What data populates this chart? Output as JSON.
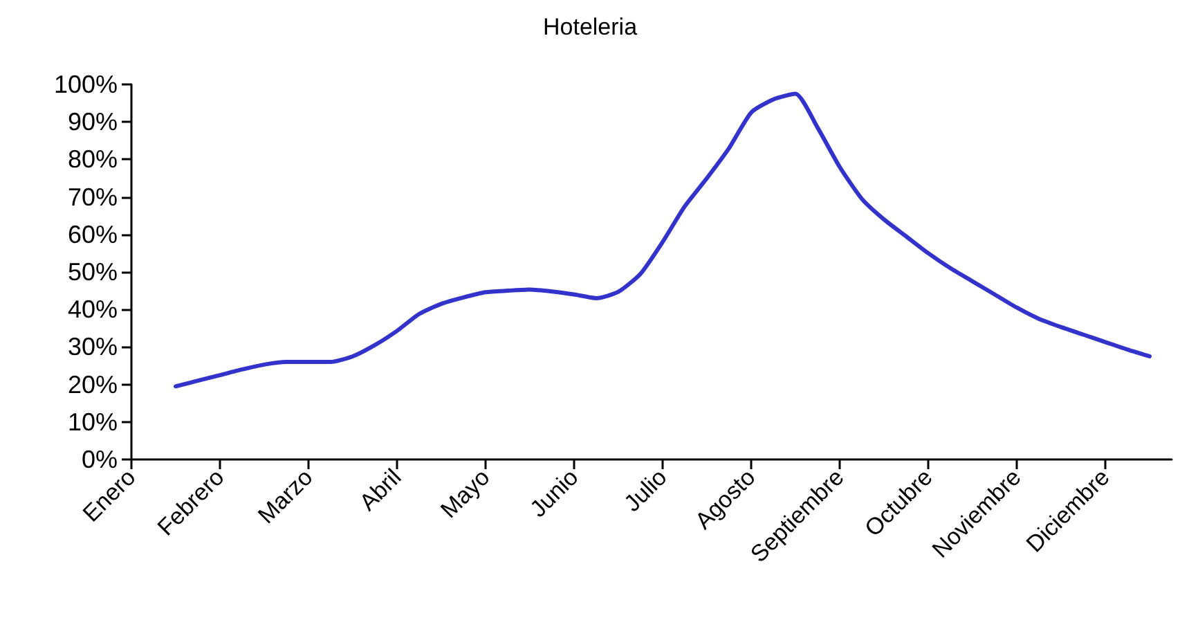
{
  "chart_data": {
    "type": "line",
    "title": "Hoteleria",
    "categories": [
      "Enero",
      null,
      null,
      null,
      "Febrero",
      null,
      null,
      null,
      "Marzo",
      null,
      null,
      null,
      "Abril",
      null,
      null,
      null,
      "Mayo",
      null,
      null,
      null,
      "Junio",
      null,
      null,
      null,
      "Julio",
      null,
      null,
      null,
      "Agosto",
      null,
      null,
      null,
      "Septiembre",
      null,
      null,
      null,
      "Octubre",
      null,
      null,
      null,
      "Noviembre",
      null,
      null,
      null,
      "Diciembre",
      null,
      null,
      null
    ],
    "values": [
      null,
      null,
      19.5,
      21,
      22.5,
      24,
      25.3,
      26,
      26,
      26,
      27.5,
      30.5,
      34.3,
      38.8,
      41.5,
      43.2,
      44.6,
      45,
      45.3,
      44.8,
      44,
      43,
      44.7,
      49.5,
      58,
      67.5,
      75,
      83,
      92.5,
      96,
      97.5,
      88.5,
      78,
      69.5,
      64,
      59.5,
      55,
      51,
      47.5,
      44,
      40.5,
      37.5,
      35.3,
      33.3,
      31.3,
      29.3,
      27.5,
      null
    ],
    "color": "#3333cc",
    "marker": "none",
    "line_style": "solid",
    "grid": false,
    "ylim": [
      0,
      100
    ],
    "yticks": [
      {
        "value": 0,
        "label": "0%"
      },
      {
        "value": 10,
        "label": "10%"
      },
      {
        "value": 20,
        "label": "20%"
      },
      {
        "value": 30,
        "label": "30%"
      },
      {
        "value": 40,
        "label": "40%"
      },
      {
        "value": 50,
        "label": "50%"
      },
      {
        "value": 60,
        "label": "60%"
      },
      {
        "value": 70,
        "label": "70%"
      },
      {
        "value": 80,
        "label": "80%"
      },
      {
        "value": 90,
        "label": "90%"
      },
      {
        "value": 100,
        "label": "100%"
      }
    ]
  }
}
